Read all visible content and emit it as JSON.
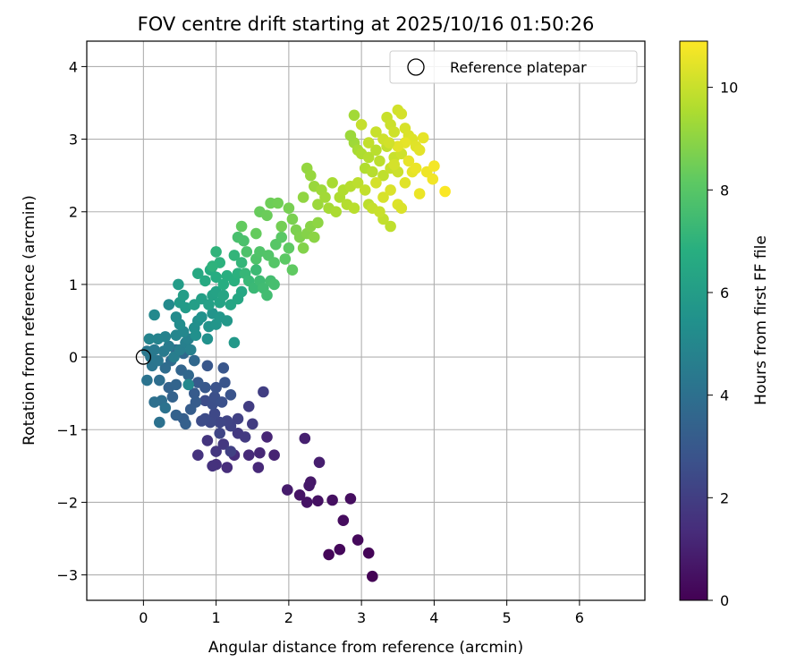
{
  "chart_data": {
    "type": "scatter",
    "title": "FOV centre drift starting at 2025/10/16 01:50:26",
    "xlabel": "Angular distance from reference (arcmin)",
    "ylabel": "Rotation from reference (arcmin)",
    "xlim": [
      -0.78,
      6.9
    ],
    "ylim": [
      -3.35,
      4.35
    ],
    "xticks": [
      0,
      1,
      2,
      3,
      4,
      5,
      6
    ],
    "yticks": [
      -3,
      -2,
      -1,
      0,
      1,
      2,
      3,
      4
    ],
    "grid": true,
    "legend": {
      "placement": "top-right",
      "entries": [
        "Reference platepar"
      ]
    },
    "reference_point": {
      "x": 0,
      "y": 0,
      "label": "Reference platepar"
    },
    "colorbar": {
      "label": "Hours from first FF file",
      "colormap": "viridis",
      "min": 0,
      "max": 10.9,
      "ticks": [
        0,
        2,
        4,
        6,
        8,
        10
      ]
    },
    "series": [
      {
        "color_values": "hours",
        "points": [
          [
            3.15,
            -3.02,
            0.05
          ],
          [
            2.55,
            -2.72,
            0.15
          ],
          [
            2.7,
            -2.65,
            0.2
          ],
          [
            3.1,
            -2.7,
            0.1
          ],
          [
            2.95,
            -2.52,
            0.25
          ],
          [
            2.75,
            -2.25,
            0.35
          ],
          [
            2.85,
            -1.95,
            0.4
          ],
          [
            2.6,
            -1.97,
            0.45
          ],
          [
            2.4,
            -1.98,
            0.5
          ],
          [
            2.25,
            -2.0,
            0.55
          ],
          [
            2.15,
            -1.9,
            0.6
          ],
          [
            2.3,
            -1.72,
            0.7
          ],
          [
            2.28,
            -1.77,
            0.75
          ],
          [
            1.98,
            -1.83,
            0.85
          ],
          [
            2.42,
            -1.45,
            0.9
          ],
          [
            2.22,
            -1.12,
            0.95
          ],
          [
            1.8,
            -1.35,
            1.05
          ],
          [
            1.7,
            -1.1,
            1.15
          ],
          [
            1.6,
            -1.32,
            1.2
          ],
          [
            1.58,
            -1.52,
            1.25
          ],
          [
            1.45,
            -1.35,
            1.3
          ],
          [
            1.25,
            -1.35,
            1.35
          ],
          [
            1.15,
            -1.52,
            1.4
          ],
          [
            1.0,
            -1.48,
            1.5
          ],
          [
            0.95,
            -1.5,
            1.55
          ],
          [
            0.75,
            -1.35,
            1.6
          ],
          [
            0.88,
            -1.15,
            1.65
          ],
          [
            1.0,
            -1.3,
            1.7
          ],
          [
            1.1,
            -1.2,
            1.75
          ],
          [
            1.3,
            -1.05,
            1.8
          ],
          [
            1.4,
            -1.1,
            1.85
          ],
          [
            1.5,
            -0.92,
            1.9
          ],
          [
            1.45,
            -0.68,
            1.95
          ],
          [
            1.65,
            -0.48,
            2.0
          ],
          [
            1.2,
            -1.3,
            2.05
          ],
          [
            1.3,
            -0.85,
            2.1
          ],
          [
            1.2,
            -0.95,
            2.15
          ],
          [
            1.15,
            -0.88,
            2.2
          ],
          [
            1.05,
            -1.05,
            2.25
          ],
          [
            1.05,
            -0.9,
            2.3
          ],
          [
            0.98,
            -0.78,
            2.35
          ],
          [
            0.92,
            -0.9,
            2.4
          ],
          [
            0.85,
            -0.85,
            2.45
          ],
          [
            0.8,
            -0.88,
            2.5
          ],
          [
            0.85,
            -0.6,
            2.55
          ],
          [
            0.95,
            -0.65,
            2.6
          ],
          [
            0.98,
            -0.55,
            2.65
          ],
          [
            1.08,
            -0.62,
            2.7
          ],
          [
            1.0,
            -0.42,
            2.75
          ],
          [
            1.2,
            -0.52,
            2.8
          ],
          [
            1.12,
            -0.35,
            2.85
          ],
          [
            1.1,
            -0.15,
            2.9
          ],
          [
            0.88,
            -0.12,
            2.95
          ],
          [
            0.85,
            -0.42,
            3.0
          ],
          [
            0.75,
            -0.35,
            3.05
          ],
          [
            0.7,
            -0.5,
            3.1
          ],
          [
            0.72,
            -0.62,
            3.15
          ],
          [
            0.65,
            -0.72,
            3.2
          ],
          [
            0.55,
            -0.85,
            3.25
          ],
          [
            0.58,
            -0.92,
            3.3
          ],
          [
            0.45,
            -0.8,
            3.35
          ],
          [
            0.4,
            -0.55,
            3.4
          ],
          [
            0.35,
            -0.42,
            3.45
          ],
          [
            0.45,
            -0.38,
            3.5
          ],
          [
            0.52,
            -0.18,
            3.55
          ],
          [
            0.62,
            -0.25,
            3.6
          ],
          [
            0.7,
            -0.05,
            3.65
          ],
          [
            0.55,
            0.05,
            3.7
          ],
          [
            0.45,
            0.1,
            3.75
          ],
          [
            0.38,
            -0.05,
            3.8
          ],
          [
            0.3,
            -0.15,
            3.85
          ],
          [
            0.22,
            -0.32,
            3.9
          ],
          [
            0.25,
            -0.6,
            3.95
          ],
          [
            0.15,
            -0.62,
            4.0
          ],
          [
            0.22,
            -0.9,
            4.05
          ],
          [
            0.3,
            -0.7,
            4.1
          ],
          [
            0.05,
            -0.32,
            4.15
          ],
          [
            0.12,
            -0.12,
            4.2
          ],
          [
            0.2,
            -0.05,
            4.25
          ],
          [
            0.1,
            0.0,
            4.3
          ],
          [
            0.05,
            0.08,
            4.35
          ],
          [
            0.15,
            0.1,
            4.4
          ],
          [
            0.28,
            0.08,
            4.45
          ],
          [
            0.35,
            0.15,
            4.5
          ],
          [
            0.42,
            0.0,
            4.55
          ],
          [
            0.5,
            0.1,
            4.6
          ],
          [
            0.58,
            0.2,
            4.65
          ],
          [
            0.65,
            0.1,
            4.7
          ],
          [
            0.62,
            0.25,
            4.75
          ],
          [
            0.3,
            0.28,
            4.8
          ],
          [
            0.2,
            0.25,
            4.85
          ],
          [
            0.08,
            0.25,
            4.9
          ],
          [
            0.45,
            0.3,
            4.95
          ],
          [
            0.55,
            0.35,
            5.0
          ],
          [
            0.62,
            -0.38,
            5.05
          ],
          [
            0.15,
            0.58,
            5.1
          ],
          [
            0.35,
            0.72,
            5.15
          ],
          [
            0.45,
            0.55,
            5.2
          ],
          [
            0.5,
            0.45,
            5.25
          ],
          [
            0.7,
            0.4,
            5.3
          ],
          [
            0.75,
            0.5,
            5.35
          ],
          [
            0.72,
            0.3,
            5.4
          ],
          [
            0.88,
            0.25,
            5.45
          ],
          [
            0.8,
            0.55,
            5.5
          ],
          [
            0.9,
            0.42,
            5.55
          ],
          [
            0.95,
            0.6,
            5.6
          ],
          [
            1.0,
            0.45,
            5.65
          ],
          [
            1.05,
            0.55,
            5.7
          ],
          [
            1.15,
            0.5,
            5.75
          ],
          [
            1.25,
            0.2,
            5.8
          ],
          [
            0.5,
            0.75,
            5.85
          ],
          [
            0.58,
            0.68,
            5.9
          ],
          [
            0.48,
            1.0,
            5.95
          ],
          [
            0.55,
            0.85,
            6.0
          ],
          [
            0.7,
            0.72,
            6.05
          ],
          [
            0.8,
            0.8,
            6.1
          ],
          [
            0.9,
            0.72,
            6.15
          ],
          [
            0.95,
            0.85,
            6.2
          ],
          [
            1.0,
            0.9,
            6.25
          ],
          [
            1.05,
            0.75,
            6.3
          ],
          [
            1.1,
            0.85,
            6.35
          ],
          [
            1.2,
            0.72,
            6.4
          ],
          [
            1.3,
            0.8,
            6.45
          ],
          [
            1.35,
            0.9,
            6.5
          ],
          [
            0.75,
            1.15,
            6.55
          ],
          [
            0.85,
            1.05,
            6.6
          ],
          [
            0.92,
            1.2,
            6.65
          ],
          [
            1.0,
            1.1,
            6.7
          ],
          [
            1.1,
            1.0,
            6.75
          ],
          [
            1.15,
            1.12,
            6.8
          ],
          [
            1.25,
            1.05,
            6.85
          ],
          [
            1.3,
            1.15,
            6.9
          ],
          [
            1.05,
            1.3,
            6.95
          ],
          [
            0.95,
            1.25,
            7.0
          ],
          [
            1.0,
            1.45,
            7.05
          ],
          [
            1.25,
            1.4,
            7.1
          ],
          [
            1.35,
            1.3,
            7.15
          ],
          [
            1.4,
            1.15,
            7.2
          ],
          [
            1.45,
            1.05,
            7.25
          ],
          [
            1.52,
            0.95,
            7.3
          ],
          [
            1.55,
            1.2,
            7.35
          ],
          [
            1.6,
            1.05,
            7.4
          ],
          [
            1.65,
            0.95,
            7.45
          ],
          [
            1.7,
            0.85,
            7.5
          ],
          [
            1.75,
            1.05,
            7.55
          ],
          [
            1.8,
            1.0,
            7.6
          ],
          [
            1.3,
            1.65,
            7.65
          ],
          [
            1.38,
            1.6,
            7.7
          ],
          [
            1.42,
            1.45,
            7.75
          ],
          [
            1.55,
            1.35,
            7.8
          ],
          [
            1.6,
            1.45,
            7.85
          ],
          [
            1.72,
            1.4,
            7.9
          ],
          [
            1.8,
            1.3,
            7.95
          ],
          [
            1.82,
            1.55,
            8.0
          ],
          [
            1.9,
            1.65,
            8.05
          ],
          [
            1.95,
            1.35,
            8.1
          ],
          [
            2.0,
            1.5,
            8.15
          ],
          [
            2.05,
            1.2,
            8.2
          ],
          [
            1.35,
            1.8,
            8.25
          ],
          [
            1.55,
            1.7,
            8.3
          ],
          [
            1.6,
            2.0,
            8.35
          ],
          [
            1.7,
            1.95,
            8.4
          ],
          [
            1.75,
            2.12,
            8.45
          ],
          [
            1.85,
            2.12,
            8.5
          ],
          [
            1.9,
            1.8,
            8.55
          ],
          [
            2.0,
            2.05,
            8.6
          ],
          [
            2.05,
            1.9,
            8.65
          ],
          [
            2.1,
            1.75,
            8.7
          ],
          [
            2.15,
            1.65,
            8.75
          ],
          [
            2.2,
            1.5,
            8.8
          ],
          [
            2.25,
            1.7,
            8.85
          ],
          [
            2.3,
            1.8,
            8.9
          ],
          [
            2.35,
            1.65,
            8.95
          ],
          [
            2.4,
            1.85,
            9.0
          ],
          [
            2.2,
            2.2,
            9.05
          ],
          [
            2.25,
            2.6,
            9.1
          ],
          [
            2.3,
            2.5,
            9.15
          ],
          [
            2.35,
            2.35,
            9.2
          ],
          [
            2.4,
            2.1,
            9.25
          ],
          [
            2.45,
            2.3,
            9.3
          ],
          [
            2.5,
            2.2,
            9.35
          ],
          [
            2.55,
            2.05,
            9.4
          ],
          [
            2.6,
            2.4,
            9.45
          ],
          [
            2.65,
            2.0,
            9.5
          ],
          [
            2.7,
            2.2,
            9.55
          ],
          [
            2.75,
            2.3,
            9.6
          ],
          [
            2.8,
            2.1,
            9.65
          ],
          [
            2.85,
            2.35,
            9.7
          ],
          [
            2.9,
            2.05,
            9.75
          ],
          [
            2.95,
            2.4,
            9.8
          ],
          [
            2.9,
            2.95,
            9.3
          ],
          [
            2.85,
            3.05,
            9.25
          ],
          [
            2.9,
            3.33,
            9.35
          ],
          [
            2.95,
            2.85,
            9.45
          ],
          [
            3.0,
            2.8,
            9.55
          ],
          [
            3.05,
            2.6,
            9.6
          ],
          [
            3.1,
            2.75,
            9.65
          ],
          [
            3.15,
            2.55,
            9.7
          ],
          [
            3.2,
            2.85,
            9.75
          ],
          [
            3.25,
            2.7,
            9.8
          ],
          [
            3.3,
            2.5,
            9.85
          ],
          [
            3.35,
            2.9,
            9.9
          ],
          [
            3.4,
            2.6,
            9.95
          ],
          [
            3.45,
            2.75,
            10.0
          ],
          [
            3.5,
            2.55,
            10.05
          ],
          [
            3.55,
            2.8,
            10.1
          ],
          [
            3.35,
            3.3,
            10.0
          ],
          [
            3.4,
            3.2,
            10.05
          ],
          [
            3.45,
            3.1,
            10.1
          ],
          [
            3.5,
            3.4,
            10.15
          ],
          [
            3.55,
            3.35,
            10.2
          ],
          [
            3.6,
            3.15,
            10.25
          ],
          [
            3.65,
            3.05,
            10.3
          ],
          [
            3.7,
            3.0,
            10.35
          ],
          [
            3.75,
            2.9,
            10.4
          ],
          [
            3.8,
            2.85,
            10.45
          ],
          [
            3.85,
            3.02,
            10.5
          ],
          [
            3.2,
            2.4,
            10.2
          ],
          [
            3.3,
            2.2,
            10.25
          ],
          [
            3.4,
            2.3,
            10.3
          ],
          [
            3.5,
            2.1,
            10.35
          ],
          [
            3.6,
            2.4,
            10.4
          ],
          [
            3.7,
            2.55,
            10.5
          ],
          [
            3.8,
            2.25,
            10.6
          ],
          [
            3.9,
            2.55,
            10.65
          ],
          [
            3.98,
            2.45,
            10.7
          ],
          [
            4.0,
            2.63,
            10.75
          ],
          [
            4.15,
            2.28,
            10.85
          ],
          [
            3.3,
            1.9,
            9.9
          ],
          [
            3.4,
            1.8,
            9.85
          ],
          [
            3.1,
            2.1,
            9.8
          ],
          [
            3.05,
            2.3,
            9.9
          ],
          [
            3.15,
            2.05,
            9.95
          ],
          [
            3.25,
            2.0,
            10.0
          ],
          [
            3.55,
            2.05,
            10.3
          ],
          [
            3.65,
            2.7,
            10.55
          ],
          [
            3.75,
            2.6,
            10.6
          ],
          [
            3.6,
            2.95,
            10.5
          ],
          [
            3.5,
            2.9,
            10.45
          ],
          [
            3.45,
            2.65,
            10.2
          ],
          [
            3.3,
            3.0,
            10.1
          ],
          [
            3.2,
            3.1,
            10.0
          ],
          [
            3.1,
            2.95,
            9.9
          ],
          [
            3.0,
            3.2,
            9.95
          ],
          [
            3.38,
            2.95,
            10.15
          ]
        ]
      }
    ]
  }
}
